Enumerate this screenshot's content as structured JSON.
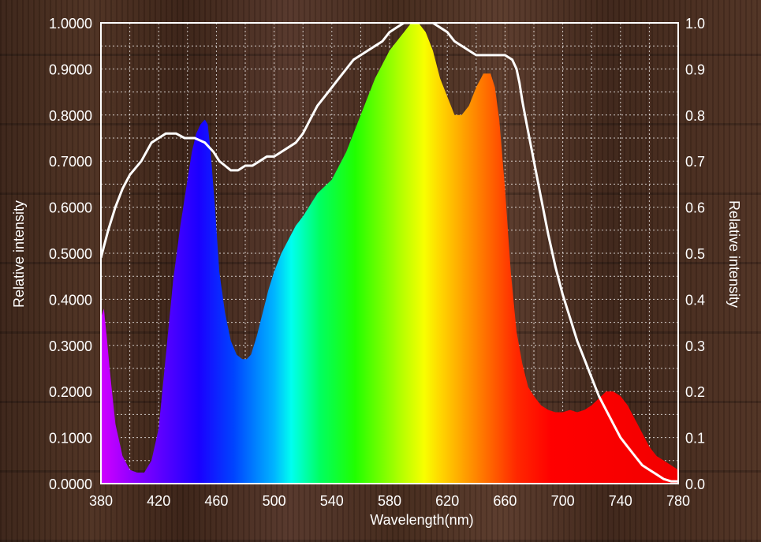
{
  "chart_data": {
    "type": "area",
    "xlabel": "Wavelength(nm)",
    "ylabel_left": "Relative intensity",
    "ylabel_right": "Relative intensity",
    "xlim": [
      380,
      780
    ],
    "ylim_left": [
      0,
      1
    ],
    "ylim_right": [
      0,
      1
    ],
    "x_ticks": [
      "380",
      "420",
      "460",
      "500",
      "540",
      "580",
      "620",
      "660",
      "700",
      "740",
      "780"
    ],
    "y_ticks_left": [
      "0.0000",
      "0.1000",
      "0.2000",
      "0.3000",
      "0.4000",
      "0.5000",
      "0.6000",
      "0.7000",
      "0.8000",
      "0.9000",
      "1.0000"
    ],
    "y_ticks_right": [
      "0.0",
      "0.1",
      "0.2",
      "0.3",
      "0.4",
      "0.5",
      "0.6",
      "0.7",
      "0.8",
      "0.9",
      "1.0"
    ],
    "grid": true,
    "series": [
      {
        "type": "area",
        "fill": "spectral-gradient",
        "x": [
          380,
          382,
          384,
          386,
          390,
          395,
          400,
          405,
          410,
          415,
          420,
          425,
          430,
          435,
          440,
          443,
          446,
          449,
          452,
          454,
          456,
          459,
          462,
          466,
          470,
          474,
          478,
          481,
          484,
          488,
          492,
          496,
          500,
          505,
          510,
          515,
          520,
          530,
          540,
          550,
          560,
          570,
          580,
          590,
          595,
          600,
          605,
          610,
          615,
          620,
          625,
          630,
          635,
          640,
          645,
          650,
          653,
          656,
          660,
          664,
          668,
          672,
          676,
          680,
          685,
          690,
          695,
          700,
          705,
          710,
          715,
          720,
          725,
          730,
          735,
          740,
          745,
          750,
          755,
          760,
          765,
          770,
          775,
          780
        ],
        "values": [
          0.36,
          0.38,
          0.32,
          0.25,
          0.13,
          0.06,
          0.03,
          0.024,
          0.024,
          0.05,
          0.12,
          0.28,
          0.44,
          0.56,
          0.66,
          0.72,
          0.76,
          0.78,
          0.79,
          0.78,
          0.72,
          0.6,
          0.46,
          0.37,
          0.31,
          0.28,
          0.27,
          0.27,
          0.28,
          0.32,
          0.37,
          0.42,
          0.46,
          0.5,
          0.53,
          0.56,
          0.58,
          0.63,
          0.66,
          0.72,
          0.8,
          0.88,
          0.94,
          0.98,
          1.0,
          1.0,
          0.98,
          0.94,
          0.88,
          0.84,
          0.8,
          0.8,
          0.82,
          0.86,
          0.89,
          0.89,
          0.86,
          0.79,
          0.64,
          0.46,
          0.33,
          0.26,
          0.21,
          0.19,
          0.17,
          0.16,
          0.155,
          0.155,
          0.16,
          0.155,
          0.16,
          0.17,
          0.185,
          0.2,
          0.2,
          0.19,
          0.17,
          0.14,
          0.11,
          0.08,
          0.06,
          0.05,
          0.04,
          0.03
        ]
      },
      {
        "type": "line",
        "color": "#ffffff",
        "x": [
          380,
          385,
          390,
          395,
          400,
          408,
          415,
          420,
          425,
          432,
          438,
          445,
          452,
          458,
          462,
          466,
          470,
          475,
          480,
          485,
          490,
          495,
          500,
          505,
          510,
          515,
          520,
          525,
          530,
          535,
          540,
          545,
          550,
          555,
          560,
          565,
          570,
          575,
          580,
          585,
          590,
          595,
          600,
          605,
          610,
          615,
          620,
          625,
          630,
          635,
          640,
          645,
          650,
          655,
          660,
          665,
          668,
          670,
          672,
          675,
          680,
          685,
          690,
          695,
          700,
          705,
          710,
          715,
          720,
          725,
          730,
          735,
          740,
          745,
          750,
          755,
          760,
          765,
          770,
          775,
          780
        ],
        "values": [
          0.49,
          0.55,
          0.6,
          0.64,
          0.67,
          0.7,
          0.74,
          0.75,
          0.76,
          0.76,
          0.75,
          0.75,
          0.74,
          0.72,
          0.7,
          0.69,
          0.68,
          0.68,
          0.69,
          0.69,
          0.7,
          0.71,
          0.71,
          0.72,
          0.73,
          0.74,
          0.76,
          0.79,
          0.82,
          0.84,
          0.86,
          0.88,
          0.9,
          0.92,
          0.93,
          0.94,
          0.95,
          0.96,
          0.98,
          0.99,
          1.0,
          1.0,
          1.0,
          1.0,
          1.0,
          0.99,
          0.98,
          0.96,
          0.95,
          0.94,
          0.93,
          0.93,
          0.93,
          0.93,
          0.93,
          0.92,
          0.9,
          0.87,
          0.83,
          0.78,
          0.7,
          0.62,
          0.54,
          0.47,
          0.41,
          0.36,
          0.31,
          0.27,
          0.23,
          0.19,
          0.16,
          0.13,
          0.1,
          0.08,
          0.06,
          0.04,
          0.03,
          0.02,
          0.01,
          0.005,
          0.005
        ]
      }
    ]
  }
}
